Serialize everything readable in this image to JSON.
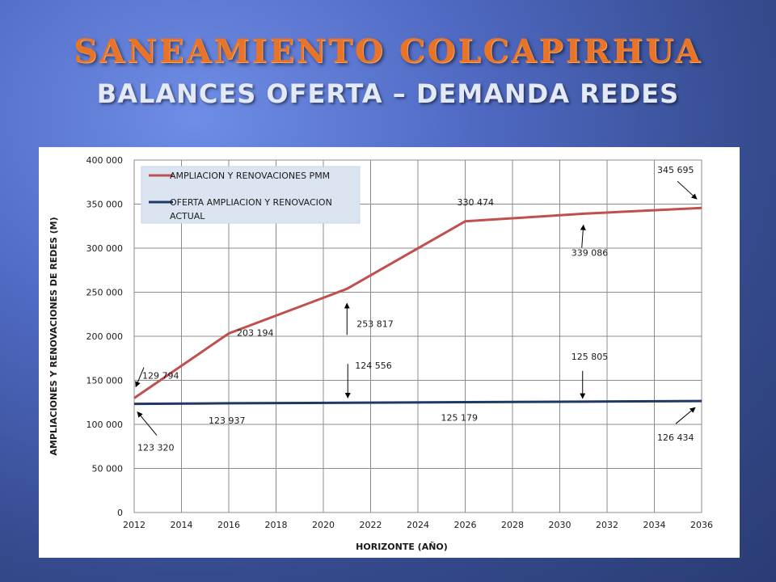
{
  "slide": {
    "title": "SANEAMIENTO COLCAPIRHUA",
    "subtitle": "BALANCES OFERTA – DEMANDA REDES"
  },
  "colors": {
    "series_pmm": "#c0504d",
    "series_actual": "#1f3864",
    "title_accent": "#e8742a"
  },
  "chart_data": {
    "type": "line",
    "xlabel": "HORIZONTE (AÑO)",
    "ylabel": "AMPLIACIONES Y RENOVACIONES DE REDES (M)",
    "xlim": [
      2012,
      2036
    ],
    "ylim": [
      0,
      400000
    ],
    "x_ticks": [
      "2012",
      "2014",
      "2016",
      "2018",
      "2020",
      "2022",
      "2024",
      "2026",
      "2028",
      "2030",
      "2032",
      "2034",
      "2036"
    ],
    "y_ticks": [
      "0",
      "50 000",
      "100 000",
      "150 000",
      "200 000",
      "250 000",
      "300 000",
      "350 000",
      "400 000"
    ],
    "grid": true,
    "legend_position": "top-left",
    "series": [
      {
        "name": "AMPLIACION Y RENOVACIONES PMM",
        "x": [
          2012,
          2016,
          2021,
          2026,
          2031,
          2036
        ],
        "y": [
          129794,
          203194,
          253817,
          330474,
          339086,
          345695
        ]
      },
      {
        "name": "OFERTA AMPLIACION Y RENOVACION ACTUAL",
        "x": [
          2012,
          2016,
          2021,
          2026,
          2031,
          2036
        ],
        "y": [
          123320,
          123937,
          124556,
          125179,
          125805,
          126434
        ]
      }
    ],
    "data_labels": [
      "129 794",
      "203 194",
      "253 817",
      "330 474",
      "339 086",
      "345 695",
      "123 320",
      "123 937",
      "124 556",
      "125 179",
      "125 805",
      "126 434"
    ]
  }
}
